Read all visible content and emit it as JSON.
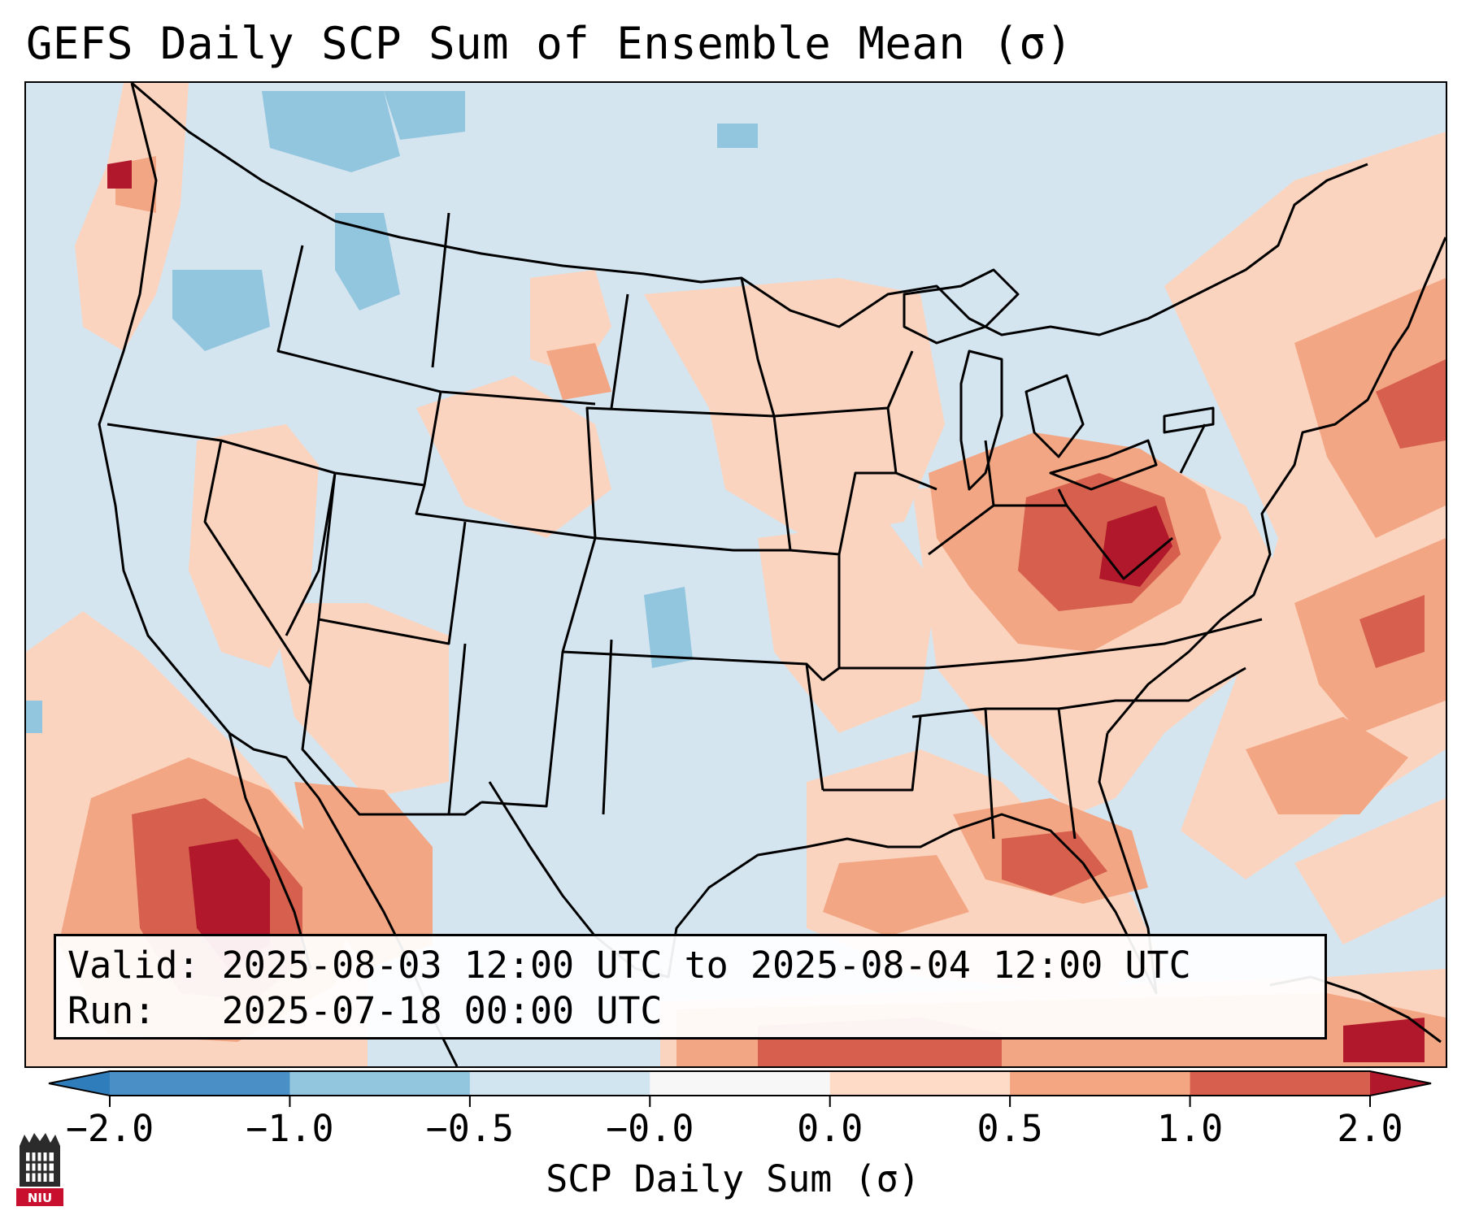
{
  "header": {
    "title": "GEFS Daily SCP Sum of Ensemble Mean (σ)"
  },
  "info_box": {
    "valid_label": "Valid:",
    "valid_text": "2025-08-03 12:00 UTC to 2025-08-04 12:00 UTC",
    "run_label": "Run:",
    "run_text": "2025-07-18 00:00 UTC"
  },
  "colorbar": {
    "label": "SCP Daily Sum (σ)",
    "tick_labels": [
      "−2.0",
      "−1.0",
      "−0.5",
      "−0.0",
      "0.0",
      "0.5",
      "1.0",
      "2.0"
    ],
    "bins": [
      {
        "from": -3.0,
        "to": -2.0,
        "color": "#2f7dbb"
      },
      {
        "from": -2.0,
        "to": -1.0,
        "color": "#4a90c6"
      },
      {
        "from": -1.0,
        "to": -0.5,
        "color": "#92c5de"
      },
      {
        "from": -0.5,
        "to": -0.0,
        "color": "#d1e5f0"
      },
      {
        "from": -0.0,
        "to": 0.0,
        "color": "#f7f7f7"
      },
      {
        "from": 0.0,
        "to": 0.5,
        "color": "#fddbc7"
      },
      {
        "from": 0.5,
        "to": 1.0,
        "color": "#f4a582"
      },
      {
        "from": 1.0,
        "to": 2.0,
        "color": "#d6604d"
      },
      {
        "from": 2.0,
        "to": 3.0,
        "color": "#b2182b"
      }
    ]
  },
  "logo": {
    "text": "NIU"
  },
  "colors": {
    "ocean_background": "#d4e5f0",
    "frame": "#000000"
  }
}
